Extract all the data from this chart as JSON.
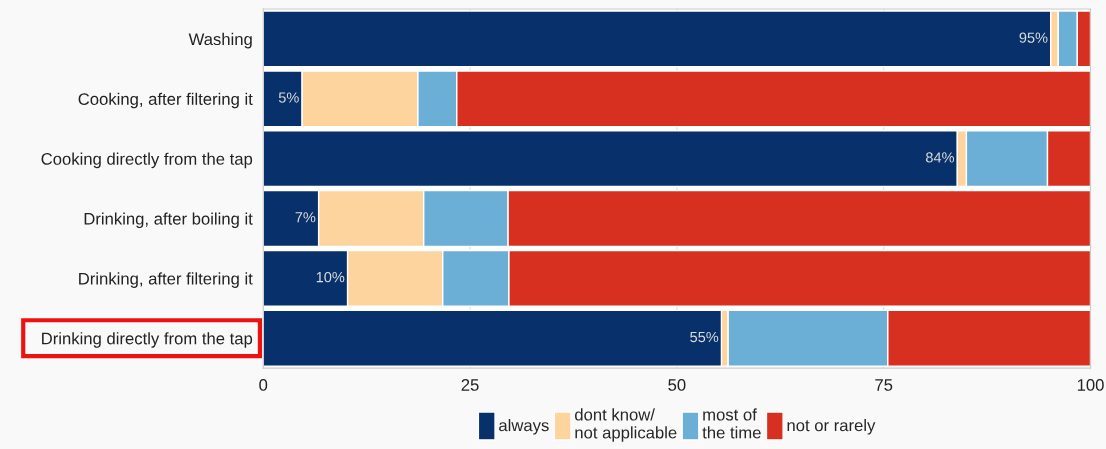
{
  "chart_data": {
    "type": "bar",
    "orientation": "horizontal",
    "stacked": true,
    "categories": [
      "Washing",
      "Cooking, after filtering it",
      "Cooking directly from the tap",
      "Drinking, after boiling it",
      "Drinking, after filtering it",
      "Drinking directly from the tap"
    ],
    "series": [
      {
        "name": "always",
        "color": "#08306b",
        "values": [
          95.2,
          4.7,
          83.9,
          6.7,
          10.2,
          55.4
        ],
        "value_labels": [
          "95%",
          "5%",
          "84%",
          "7%",
          "10%",
          "55%"
        ]
      },
      {
        "name": "dont know/\nnot applicable",
        "color": "#fdd49e",
        "values": [
          0.9,
          14.0,
          1.1,
          12.7,
          11.5,
          0.8
        ]
      },
      {
        "name": "most of\nthe time",
        "color": "#6baed6",
        "values": [
          2.3,
          4.7,
          9.8,
          10.2,
          8.0,
          19.3
        ]
      },
      {
        "name": "not or rarely",
        "color": "#d73020",
        "values": [
          1.6,
          76.6,
          5.2,
          70.4,
          70.3,
          24.5
        ]
      }
    ],
    "xlim": [
      0,
      100
    ],
    "xticks": [
      0,
      25,
      50,
      75,
      100
    ],
    "grid": "x",
    "legend": "bottom"
  }
}
